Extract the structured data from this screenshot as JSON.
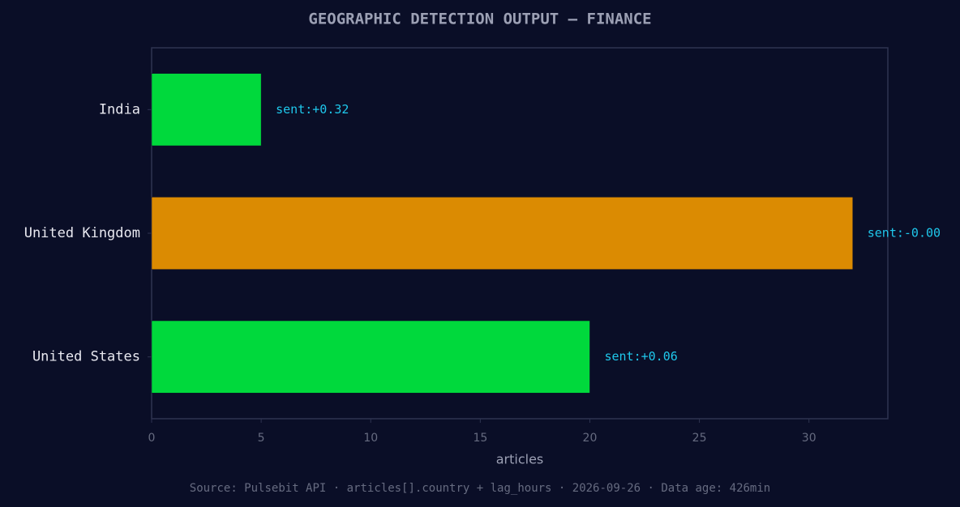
{
  "chart_data": {
    "type": "barh",
    "title": "GEOGRAPHIC DETECTION OUTPUT — FINANCE",
    "categories": [
      "India",
      "United Kingdom",
      "United States"
    ],
    "values": [
      5,
      32,
      20
    ],
    "colors": [
      "#00d93c",
      "#db8b02",
      "#00d93c"
    ],
    "annotations": [
      "sent:+0.32",
      "sent:-0.00",
      "sent:+0.06"
    ],
    "xlabel": "articles",
    "xlim": [
      0,
      33.6
    ],
    "xticks": [
      0,
      5,
      10,
      15,
      20,
      25,
      30
    ],
    "footer": "Source: Pulsebit API · articles[].country + lag_hours · 2026-09-26 · Data age: 426min"
  }
}
